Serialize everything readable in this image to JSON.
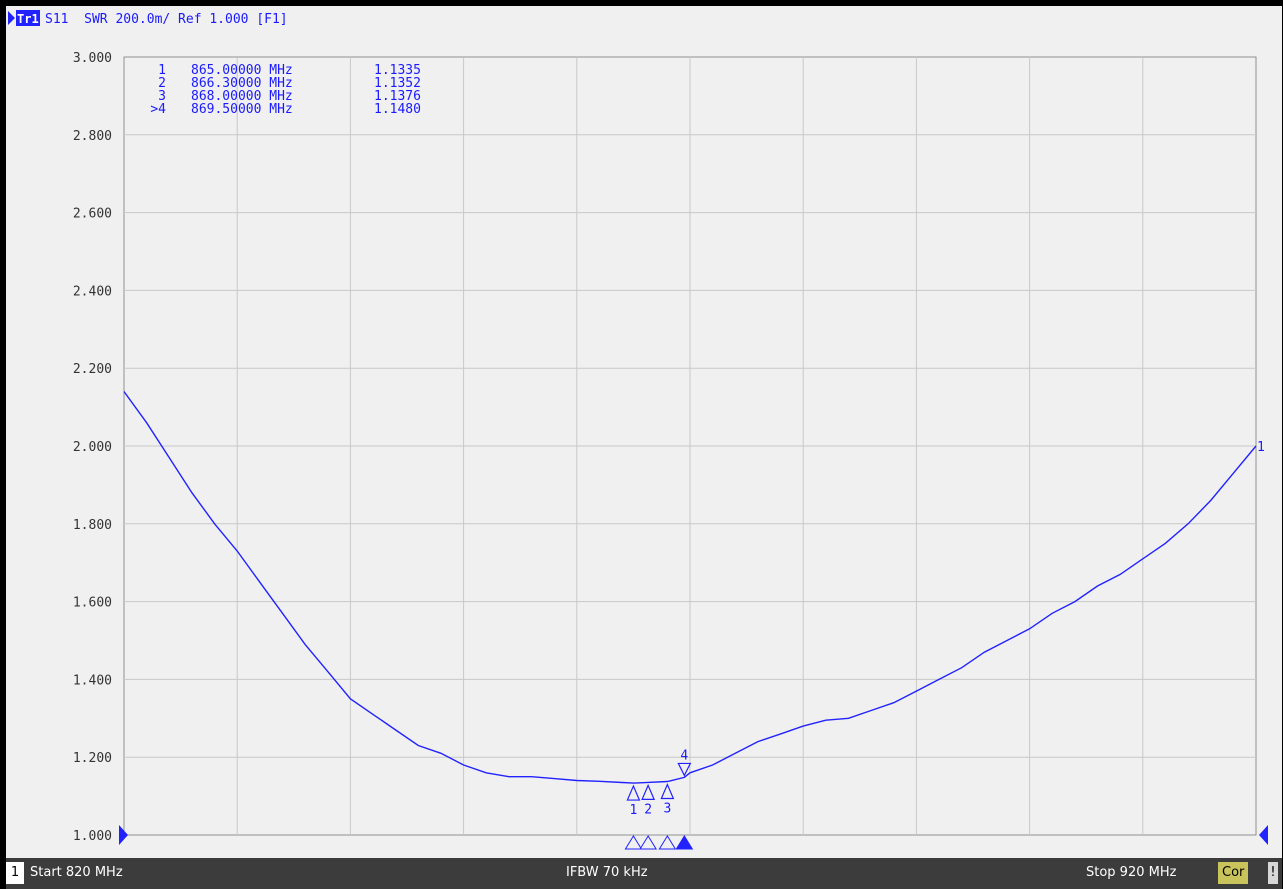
{
  "header": {
    "trace_badge": "Tr1",
    "trace_info": "S11  SWR 200.0m/ Ref 1.000 [F1]"
  },
  "chart_data": {
    "type": "line",
    "x_unit": "MHz",
    "xlim": [
      820,
      920
    ],
    "ylim": [
      1.0,
      3.0
    ],
    "y_ticks": [
      "3.000",
      "2.800",
      "2.600",
      "2.400",
      "2.200",
      "2.000",
      "1.800",
      "1.600",
      "1.400",
      "1.200",
      "1.000"
    ],
    "grid": true,
    "series": [
      {
        "x": [
          820,
          822,
          824,
          826,
          828,
          830,
          832,
          834,
          836,
          838,
          840,
          842,
          844,
          846,
          848,
          850,
          852,
          854,
          856,
          858,
          860,
          862,
          864,
          865,
          866.3,
          868,
          869.5,
          870,
          872,
          874,
          876,
          878,
          880,
          882,
          884,
          886,
          888,
          890,
          892,
          894,
          896,
          898,
          900,
          902,
          904,
          906,
          908,
          910,
          912,
          914,
          916,
          918,
          920
        ],
        "y": [
          2.14,
          2.06,
          1.97,
          1.88,
          1.8,
          1.73,
          1.65,
          1.57,
          1.49,
          1.42,
          1.35,
          1.31,
          1.27,
          1.23,
          1.21,
          1.18,
          1.16,
          1.15,
          1.15,
          1.145,
          1.14,
          1.138,
          1.135,
          1.1335,
          1.1352,
          1.1376,
          1.148,
          1.16,
          1.18,
          1.21,
          1.24,
          1.26,
          1.28,
          1.295,
          1.3,
          1.32,
          1.34,
          1.37,
          1.4,
          1.43,
          1.47,
          1.5,
          1.53,
          1.57,
          1.6,
          1.64,
          1.67,
          1.71,
          1.75,
          1.8,
          1.86,
          1.93,
          2.0
        ]
      }
    ],
    "markers": [
      {
        "num": "1",
        "freq": "865.00000 MHz",
        "value": "1.1335",
        "x": 865.0,
        "y": 1.1335,
        "active": false
      },
      {
        "num": "2",
        "freq": "866.30000 MHz",
        "value": "1.1352",
        "x": 866.3,
        "y": 1.1352,
        "active": false
      },
      {
        "num": "3",
        "freq": "868.00000 MHz",
        "value": "1.1376",
        "x": 868.0,
        "y": 1.1376,
        "active": false
      },
      {
        "num": ">4",
        "freq": "869.50000 MHz",
        "value": "1.1480",
        "x": 869.5,
        "y": 1.148,
        "active": true
      }
    ],
    "trace_end_label": "1"
  },
  "statusbar": {
    "channel": "1",
    "start": "Start 820 MHz",
    "ifbw": "IFBW 70 kHz",
    "stop": "Stop 920 MHz",
    "cor": "Cor",
    "warning": "!"
  },
  "colors": {
    "trace": "#2222ff",
    "grid": "#c8c8c8",
    "background": "#f0f0f0",
    "text": "#1a1aff"
  }
}
